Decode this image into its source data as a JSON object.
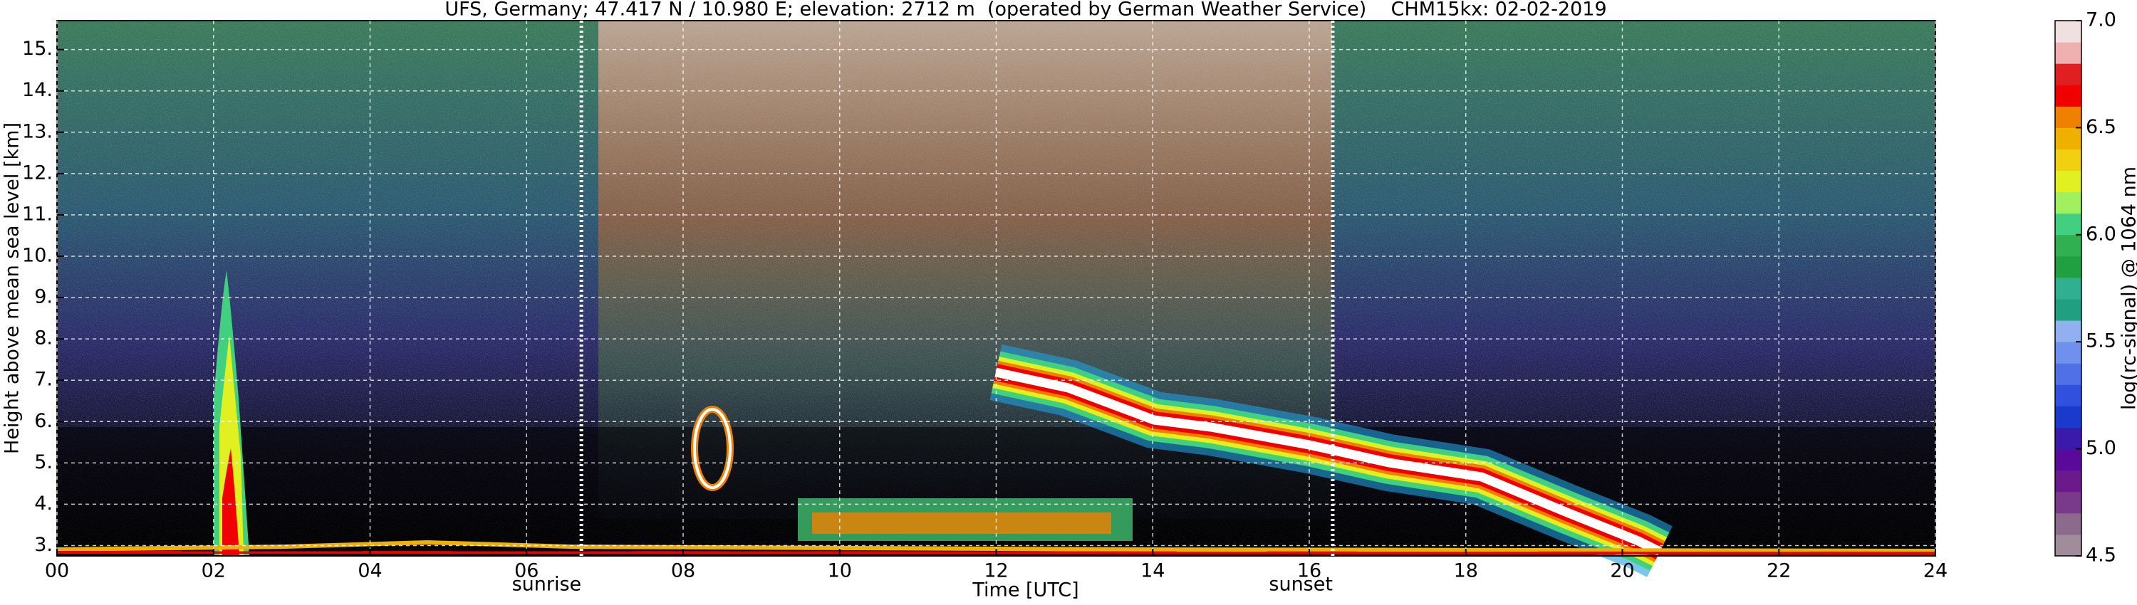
{
  "chart_data": {
    "type": "heatmap",
    "title": "UFS, Germany; 47.417 N / 10.980 E; elevation: 2712 m  (operated by German Weather Service)    CHM15kx: 02-02-2019",
    "xlabel": "Time [UTC]",
    "ylabel": "Height above mean sea level [km]",
    "xlim": [
      0,
      24
    ],
    "xticks": [
      {
        "value": 0,
        "label": "00"
      },
      {
        "value": 2,
        "label": "02"
      },
      {
        "value": 4,
        "label": "04"
      },
      {
        "value": 6,
        "label": "06"
      },
      {
        "value": 8,
        "label": "08"
      },
      {
        "value": 10,
        "label": "10"
      },
      {
        "value": 12,
        "label": "12"
      },
      {
        "value": 14,
        "label": "14"
      },
      {
        "value": 16,
        "label": "16"
      },
      {
        "value": 18,
        "label": "18"
      },
      {
        "value": 20,
        "label": "20"
      },
      {
        "value": 22,
        "label": "22"
      },
      {
        "value": 24,
        "label": "24"
      }
    ],
    "ylim": [
      2.75,
      15.7
    ],
    "yticks": [
      {
        "value": 3,
        "label": "3."
      },
      {
        "value": 4,
        "label": "4."
      },
      {
        "value": 5,
        "label": "5."
      },
      {
        "value": 6,
        "label": "6."
      },
      {
        "value": 7,
        "label": "7."
      },
      {
        "value": 8,
        "label": "8."
      },
      {
        "value": 9,
        "label": "9."
      },
      {
        "value": 10,
        "label": "10."
      },
      {
        "value": 11,
        "label": "11."
      },
      {
        "value": 12,
        "label": "12."
      },
      {
        "value": 13,
        "label": "13."
      },
      {
        "value": 14,
        "label": "14."
      },
      {
        "value": 15,
        "label": "15."
      }
    ],
    "grid": true,
    "annotations": [
      {
        "text": "sunrise",
        "x": 6.7
      },
      {
        "text": "sunset",
        "x": 16.3
      }
    ],
    "colorbar": {
      "label": "log(rc-signal) @ 1064 nm",
      "lim": [
        4.5,
        7.0
      ],
      "ticks": [
        {
          "value": 4.5,
          "label": "4.5"
        },
        {
          "value": 5.0,
          "label": "5.0"
        },
        {
          "value": 5.5,
          "label": "5.5"
        },
        {
          "value": 6.0,
          "label": "6.0"
        },
        {
          "value": 6.5,
          "label": "6.5"
        },
        {
          "value": 7.0,
          "label": "7.0"
        }
      ],
      "colors": [
        "#a08c9a",
        "#8c6a8c",
        "#7a3a8a",
        "#6a1a8a",
        "#5a0a9a",
        "#3a1aaa",
        "#1a3acc",
        "#3050e0",
        "#5070e8",
        "#7090ee",
        "#90b0f0",
        "#20a080",
        "#30b090",
        "#20a040",
        "#30b050",
        "#40d080",
        "#a0f060",
        "#e0f020",
        "#f0d010",
        "#f0b000",
        "#f08000",
        "#f00000",
        "#e02020",
        "#f0b0b0",
        "#f0e0e0"
      ]
    }
  }
}
